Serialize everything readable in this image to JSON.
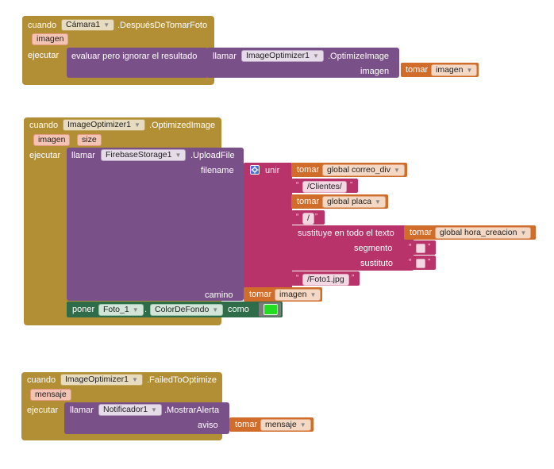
{
  "block1": {
    "event_word": "cuando",
    "component": "Cámara1",
    "event": ".DespuésDeTomarFoto",
    "param": "imagen",
    "do_label": "ejecutar",
    "eval_label": "evaluar pero ignorar el resultado",
    "call_word": "llamar",
    "call_component": "ImageOptimizer1",
    "call_method": ".OptimizeImage",
    "arg_label": "imagen",
    "get_word": "tomar",
    "get_var": "imagen"
  },
  "block2": {
    "event_word": "cuando",
    "component": "ImageOptimizer1",
    "event": ".OptimizedImage",
    "params": [
      "imagen",
      "size"
    ],
    "do_label": "ejecutar",
    "call_word": "llamar",
    "call_component": "FirebaseStorage1",
    "call_method": ".UploadFile",
    "arg_filename": "filename",
    "join_word": "unir",
    "get1_word": "tomar",
    "get1_var": "global correo_div",
    "text1": "/Clientes/",
    "get2_word": "tomar",
    "get2_var": "global placa",
    "text2": "/",
    "replace_label": "sustituye en todo el texto",
    "get3_word": "tomar",
    "get3_var": "global hora_creacion",
    "segment_label": "segmento",
    "replacement_label": "sustituto",
    "text3": "/Foto1.jpg",
    "arg_path": "camino",
    "get4_word": "tomar",
    "get4_var": "imagen",
    "set_word": "poner",
    "set_component": "Foto_1",
    "set_dot": ".",
    "set_property": "ColorDeFondo",
    "set_as": "como",
    "color_value": "#22dd22"
  },
  "block3": {
    "event_word": "cuando",
    "component": "ImageOptimizer1",
    "event": ".FailedToOptimize",
    "param": "mensaje",
    "do_label": "ejecutar",
    "call_word": "llamar",
    "call_component": "Notificador1",
    "call_method": ".MostrarAlerta",
    "arg_label": "aviso",
    "get_word": "tomar",
    "get_var": "mensaje"
  },
  "quote_open": "“",
  "quote_close": "”",
  "dropdown_glyph": "▼"
}
